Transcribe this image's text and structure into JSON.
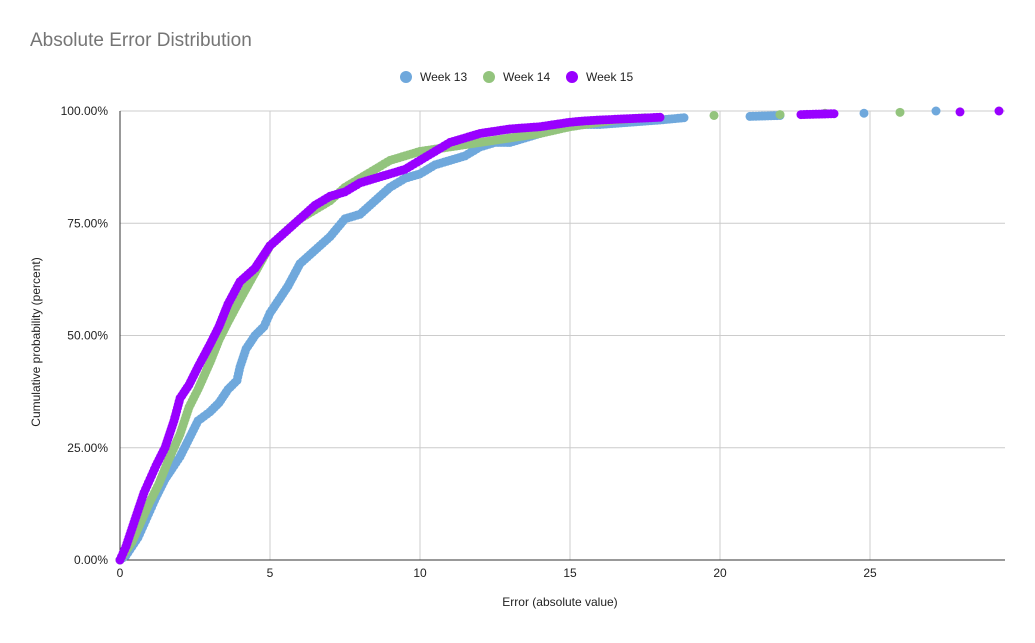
{
  "chart_data": {
    "type": "scatter",
    "title": "Absolute Error Distribution",
    "xlabel": "Error (absolute value)",
    "ylabel": "Cumulative probability (percent)",
    "xlim": [
      0,
      29.5
    ],
    "ylim": [
      0,
      100
    ],
    "x_ticks": [
      {
        "value": 0,
        "label": "0"
      },
      {
        "value": 5,
        "label": "5"
      },
      {
        "value": 10,
        "label": "10"
      },
      {
        "value": 15,
        "label": "15"
      },
      {
        "value": 20,
        "label": "20"
      },
      {
        "value": 25,
        "label": "25"
      }
    ],
    "y_ticks": [
      {
        "value": 0,
        "label": "0.00%"
      },
      {
        "value": 25,
        "label": "25.00%"
      },
      {
        "value": 50,
        "label": "50.00%"
      },
      {
        "value": 75,
        "label": "75.00%"
      },
      {
        "value": 100,
        "label": "100.00%"
      }
    ],
    "grid": true,
    "legend_position": "top",
    "series": [
      {
        "name": "Week 13",
        "color": "#6fa8dc",
        "points": [
          [
            0,
            0
          ],
          [
            0.2,
            1
          ],
          [
            0.4,
            3
          ],
          [
            0.6,
            5
          ],
          [
            0.8,
            8
          ],
          [
            1,
            11
          ],
          [
            1.2,
            14
          ],
          [
            1.5,
            18
          ],
          [
            1.8,
            21
          ],
          [
            2,
            23
          ],
          [
            2.3,
            27
          ],
          [
            2.6,
            31
          ],
          [
            3,
            33
          ],
          [
            3.3,
            35
          ],
          [
            3.6,
            38
          ],
          [
            3.9,
            40
          ],
          [
            4,
            43
          ],
          [
            4.2,
            47
          ],
          [
            4.5,
            50
          ],
          [
            4.8,
            52
          ],
          [
            5,
            55
          ],
          [
            5.3,
            58
          ],
          [
            5.6,
            61
          ],
          [
            6,
            66
          ],
          [
            6.5,
            69
          ],
          [
            7,
            72
          ],
          [
            7.5,
            76
          ],
          [
            8,
            77
          ],
          [
            8.5,
            80
          ],
          [
            9,
            83
          ],
          [
            9.5,
            85
          ],
          [
            10,
            86
          ],
          [
            10.5,
            88
          ],
          [
            11,
            89
          ],
          [
            11.5,
            90
          ],
          [
            12,
            92
          ],
          [
            12.5,
            93
          ],
          [
            13,
            93
          ],
          [
            13.5,
            94
          ],
          [
            14,
            95
          ],
          [
            14.5,
            96
          ],
          [
            15,
            97
          ],
          [
            15.5,
            97
          ],
          [
            16,
            97
          ],
          [
            17,
            97.5
          ],
          [
            18,
            98
          ],
          [
            18.8,
            98.5
          ],
          [
            21,
            98.8
          ],
          [
            22,
            99
          ],
          [
            24.8,
            99.5
          ],
          [
            27.2,
            100
          ]
        ]
      },
      {
        "name": "Week 14",
        "color": "#93c47d",
        "points": [
          [
            0,
            0
          ],
          [
            0.2,
            2
          ],
          [
            0.4,
            4
          ],
          [
            0.6,
            7
          ],
          [
            0.8,
            10
          ],
          [
            1,
            13
          ],
          [
            1.3,
            17
          ],
          [
            1.6,
            22
          ],
          [
            2,
            28
          ],
          [
            2.3,
            34
          ],
          [
            2.6,
            38
          ],
          [
            3,
            44
          ],
          [
            3.3,
            49
          ],
          [
            3.6,
            53
          ],
          [
            4,
            58
          ],
          [
            4.5,
            64
          ],
          [
            5,
            70
          ],
          [
            5.5,
            73
          ],
          [
            6,
            76
          ],
          [
            6.5,
            78
          ],
          [
            7,
            80
          ],
          [
            7.5,
            83
          ],
          [
            8,
            85
          ],
          [
            8.5,
            87
          ],
          [
            9,
            89
          ],
          [
            9.5,
            90
          ],
          [
            10,
            91
          ],
          [
            10.5,
            91.5
          ],
          [
            11,
            92
          ],
          [
            11.5,
            92.5
          ],
          [
            12,
            93
          ],
          [
            12.5,
            93.5
          ],
          [
            13,
            94
          ],
          [
            13.5,
            94.5
          ],
          [
            14,
            95
          ],
          [
            15,
            96.5
          ],
          [
            16,
            97.5
          ],
          [
            16.5,
            98
          ],
          [
            17.5,
            98.5
          ],
          [
            19.8,
            99
          ],
          [
            22,
            99.2
          ],
          [
            23.5,
            99.5
          ],
          [
            26,
            99.7
          ]
        ]
      },
      {
        "name": "Week 15",
        "color": "#9900ff",
        "points": [
          [
            0,
            0
          ],
          [
            0.2,
            3
          ],
          [
            0.4,
            7
          ],
          [
            0.6,
            11
          ],
          [
            0.8,
            15
          ],
          [
            1,
            18
          ],
          [
            1.2,
            21
          ],
          [
            1.5,
            25
          ],
          [
            1.8,
            31
          ],
          [
            2,
            36
          ],
          [
            2.3,
            39
          ],
          [
            2.6,
            43
          ],
          [
            3,
            48
          ],
          [
            3.3,
            52
          ],
          [
            3.6,
            57
          ],
          [
            4,
            62
          ],
          [
            4.5,
            65
          ],
          [
            5,
            70
          ],
          [
            5.5,
            73
          ],
          [
            6,
            76
          ],
          [
            6.5,
            79
          ],
          [
            7,
            81
          ],
          [
            7.5,
            82
          ],
          [
            8,
            84
          ],
          [
            8.5,
            85
          ],
          [
            9,
            86
          ],
          [
            9.5,
            87
          ],
          [
            10,
            89
          ],
          [
            10.5,
            91
          ],
          [
            11,
            93
          ],
          [
            11.5,
            94
          ],
          [
            12,
            95
          ],
          [
            12.5,
            95.5
          ],
          [
            13,
            96
          ],
          [
            14,
            96.5
          ],
          [
            14.5,
            97
          ],
          [
            15,
            97.5
          ],
          [
            15.5,
            97.8
          ],
          [
            16,
            98
          ],
          [
            17,
            98.3
          ],
          [
            18,
            98.6
          ],
          [
            22.7,
            99.2
          ],
          [
            23.8,
            99.4
          ],
          [
            28,
            99.8
          ],
          [
            29.3,
            100
          ]
        ]
      }
    ]
  }
}
